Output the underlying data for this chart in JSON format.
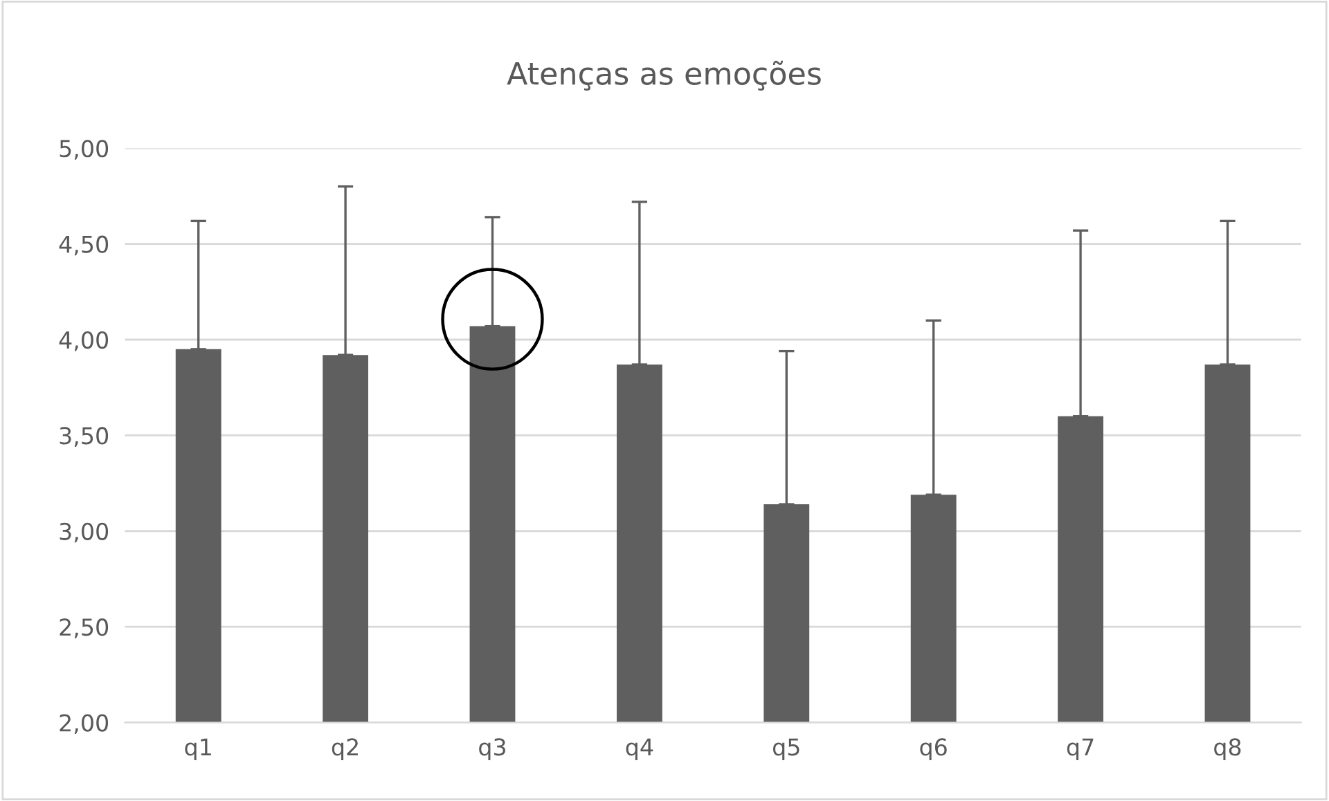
{
  "chart_data": {
    "type": "bar",
    "title": "Atenças as emoções",
    "categories": [
      "q1",
      "q2",
      "q3",
      "q4",
      "q5",
      "q6",
      "q7",
      "q8"
    ],
    "values": [
      3.95,
      3.92,
      4.07,
      3.87,
      3.14,
      3.19,
      3.6,
      3.87
    ],
    "errors": [
      [
        3.95,
        4.62
      ],
      [
        3.92,
        4.8
      ],
      [
        4.07,
        4.64
      ],
      [
        3.87,
        4.72
      ],
      [
        3.14,
        3.94
      ],
      [
        3.19,
        4.1
      ],
      [
        3.6,
        4.57
      ],
      [
        3.87,
        4.62
      ]
    ],
    "color": "#5f5f5f",
    "ylim": [
      2,
      5
    ],
    "yticks": [
      {
        "value": 2,
        "label": "2,00"
      },
      {
        "value": 2.5,
        "label": "2,50"
      },
      {
        "value": 3,
        "label": "3,00"
      },
      {
        "value": 3.5,
        "label": "3,50"
      },
      {
        "value": 4,
        "label": "4,00"
      },
      {
        "value": 4.5,
        "label": "4,50"
      },
      {
        "value": 5,
        "label": "5,00"
      }
    ],
    "grid": "y",
    "legend": false
  }
}
